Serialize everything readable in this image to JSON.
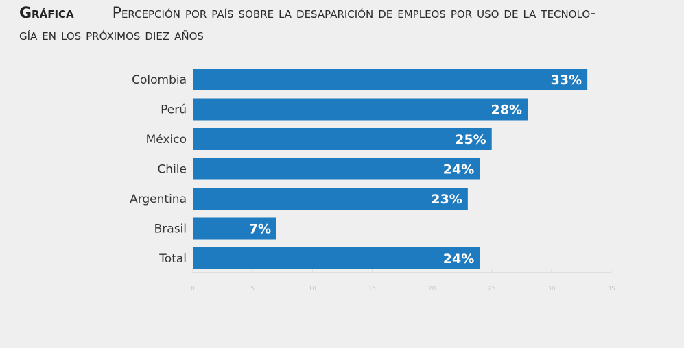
{
  "header": {
    "tag": "Gráfica",
    "title_line1": "Percepción por país sobre la desaparición de empleos por uso de la tecnolo-",
    "title_line2": "gía en los próximos diez años"
  },
  "chart_data": {
    "type": "bar",
    "orientation": "horizontal",
    "categories": [
      "Colombia",
      "Perú",
      "México",
      "Chile",
      "Argentina",
      "Brasil",
      "Total"
    ],
    "values": [
      33,
      28,
      25,
      24,
      23,
      7,
      24
    ],
    "value_labels": [
      "33%",
      "28%",
      "25%",
      "24%",
      "23%",
      "7%",
      "24%"
    ],
    "xlim": [
      0,
      35
    ],
    "xticks": [
      0,
      5,
      10,
      15,
      20,
      25,
      30,
      35
    ],
    "bar_color": "#1f7bbf",
    "grid": false,
    "title": "Percepción por país sobre la desaparición de empleos por uso de la tecnología en los próximos diez años"
  }
}
